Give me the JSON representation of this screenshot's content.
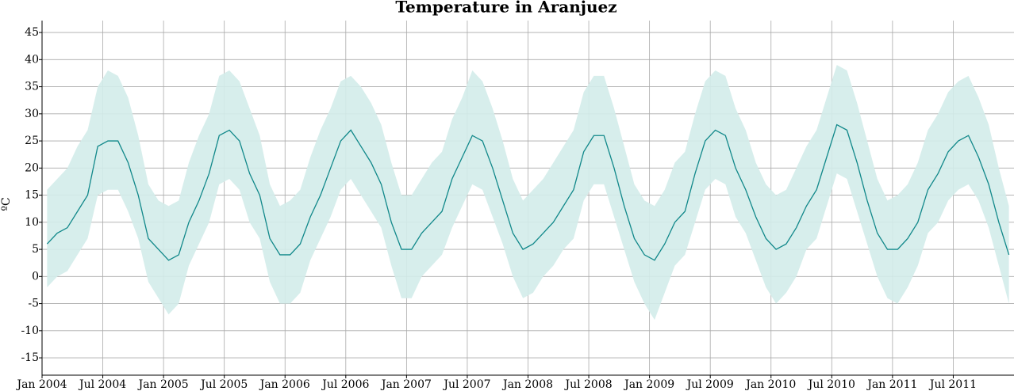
{
  "chart_data": {
    "type": "line",
    "title": "Temperature in Aranjuez",
    "y_label": "ºC",
    "x": [
      "2004-01",
      "2004-02",
      "2004-03",
      "2004-04",
      "2004-05",
      "2004-06",
      "2004-07",
      "2004-08",
      "2004-09",
      "2004-10",
      "2004-11",
      "2004-12",
      "2005-01",
      "2005-02",
      "2005-03",
      "2005-04",
      "2005-05",
      "2005-06",
      "2005-07",
      "2005-08",
      "2005-09",
      "2005-10",
      "2005-11",
      "2005-12",
      "2006-01",
      "2006-02",
      "2006-03",
      "2006-04",
      "2006-05",
      "2006-06",
      "2006-07",
      "2006-08",
      "2006-09",
      "2006-10",
      "2006-11",
      "2006-12",
      "2007-01",
      "2007-02",
      "2007-03",
      "2007-04",
      "2007-05",
      "2007-06",
      "2007-07",
      "2007-08",
      "2007-09",
      "2007-10",
      "2007-11",
      "2007-12",
      "2008-01",
      "2008-02",
      "2008-03",
      "2008-04",
      "2008-05",
      "2008-06",
      "2008-07",
      "2008-08",
      "2008-09",
      "2008-10",
      "2008-11",
      "2008-12",
      "2009-01",
      "2009-02",
      "2009-03",
      "2009-04",
      "2009-05",
      "2009-06",
      "2009-07",
      "2009-08",
      "2009-09",
      "2009-10",
      "2009-11",
      "2009-12",
      "2010-01",
      "2010-02",
      "2010-03",
      "2010-04",
      "2010-05",
      "2010-06",
      "2010-07",
      "2010-08",
      "2010-09",
      "2010-10",
      "2010-11",
      "2010-12",
      "2011-01",
      "2011-02",
      "2011-03",
      "2011-04",
      "2011-05",
      "2011-06",
      "2011-07",
      "2011-08",
      "2011-09",
      "2011-10",
      "2011-11",
      "2011-12"
    ],
    "series": [
      {
        "color": "#11888a",
        "values": [
          6,
          8,
          9,
          12,
          15,
          24,
          25,
          25,
          21,
          15,
          7,
          5,
          3,
          4,
          10,
          14,
          19,
          26,
          27,
          25,
          19,
          15,
          7,
          4,
          4,
          6,
          11,
          15,
          20,
          25,
          27,
          24,
          21,
          17,
          10,
          5,
          5,
          8,
          10,
          12,
          18,
          22,
          26,
          25,
          20,
          14,
          8,
          5,
          6,
          8,
          10,
          13,
          16,
          23,
          26,
          26,
          20,
          13,
          7,
          4,
          3,
          6,
          10,
          12,
          19,
          25,
          27,
          26,
          20,
          16,
          11,
          7,
          5,
          6,
          9,
          13,
          16,
          22,
          28,
          27,
          21,
          14,
          8,
          5,
          5,
          7,
          10,
          16,
          19,
          23,
          25,
          26,
          22,
          17,
          10,
          4
        ]
      },
      {
        "color": "#d3ecea",
        "values": [
          -2,
          0,
          1,
          4,
          7,
          15,
          16,
          16,
          12,
          7,
          -1,
          -4,
          -7,
          -5,
          2,
          6,
          10,
          17,
          18,
          16,
          10,
          7,
          -1,
          -5,
          -5,
          -3,
          3,
          7,
          11,
          16,
          18,
          15,
          12,
          9,
          2,
          -4,
          -4,
          0,
          2,
          4,
          9,
          13,
          17,
          16,
          11,
          6,
          0,
          -4,
          -3,
          0,
          2,
          5,
          7,
          14,
          17,
          17,
          11,
          5,
          -1,
          -5,
          -8,
          -3,
          2,
          4,
          10,
          16,
          18,
          17,
          11,
          8,
          3,
          -2,
          -5,
          -3,
          0,
          5,
          7,
          13,
          19,
          18,
          12,
          6,
          0,
          -4,
          -5,
          -2,
          2,
          8,
          10,
          14,
          16,
          17,
          14,
          9,
          2,
          -5
        ]
      },
      {
        "color": "#d3ecea",
        "values": [
          16,
          18,
          20,
          24,
          27,
          35,
          38,
          37,
          33,
          26,
          17,
          14,
          13,
          14,
          21,
          26,
          30,
          37,
          38,
          36,
          31,
          26,
          17,
          13,
          14,
          16,
          22,
          27,
          31,
          36,
          37,
          35,
          32,
          28,
          21,
          15,
          15,
          18,
          21,
          23,
          29,
          33,
          38,
          36,
          31,
          25,
          18,
          14,
          16,
          18,
          21,
          24,
          27,
          34,
          37,
          37,
          31,
          24,
          17,
          14,
          13,
          16,
          21,
          23,
          30,
          36,
          38,
          37,
          31,
          27,
          21,
          17,
          15,
          16,
          20,
          24,
          27,
          33,
          39,
          38,
          32,
          25,
          18,
          14,
          15,
          17,
          21,
          27,
          30,
          34,
          36,
          37,
          33,
          28,
          20,
          13
        ]
      }
    ],
    "xlim": [
      "2004-01",
      "2012-01"
    ],
    "xticks": [
      {
        "value": "2004-01",
        "label": "Jan 2004"
      },
      {
        "value": "2004-07",
        "label": "Jul 2004"
      },
      {
        "value": "2005-01",
        "label": "Jan 2005"
      },
      {
        "value": "2005-07",
        "label": "Jul 2005"
      },
      {
        "value": "2006-01",
        "label": "Jan 2006"
      },
      {
        "value": "2006-07",
        "label": "Jul 2006"
      },
      {
        "value": "2007-01",
        "label": "Jan 2007"
      },
      {
        "value": "2007-07",
        "label": "Jul 2007"
      },
      {
        "value": "2008-01",
        "label": "Jan 2008"
      },
      {
        "value": "2008-07",
        "label": "Jul 2008"
      },
      {
        "value": "2009-01",
        "label": "Jan 2009"
      },
      {
        "value": "2009-07",
        "label": "Jul 2009"
      },
      {
        "value": "2010-01",
        "label": "Jan 2010"
      },
      {
        "value": "2010-07",
        "label": "Jul 2010"
      },
      {
        "value": "2011-01",
        "label": "Jan 2011"
      },
      {
        "value": "2011-07",
        "label": "Jul 2011"
      }
    ],
    "ylim": [
      -18.2,
      47.2
    ],
    "yticks": [
      -15,
      -10,
      -5,
      0,
      5,
      10,
      15,
      20,
      25,
      30,
      35,
      40,
      45
    ],
    "grid": true
  }
}
